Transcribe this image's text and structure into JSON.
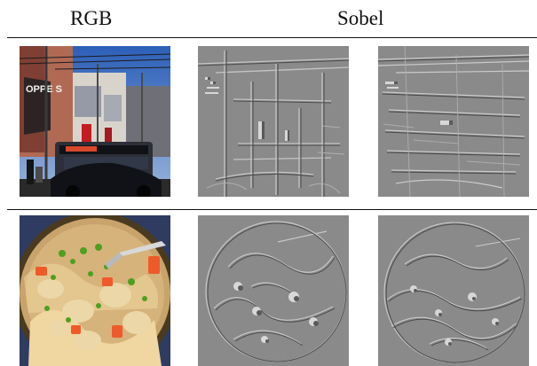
{
  "header": {
    "rgb_label": "RGB",
    "sobel_label": "Sobel"
  },
  "rows": [
    {
      "scene": "street",
      "rgb_sign_text": "OPPE S"
    },
    {
      "scene": "food"
    }
  ],
  "colors": {
    "sobel_gray": "#8a8a8a",
    "rule": "#111111"
  }
}
